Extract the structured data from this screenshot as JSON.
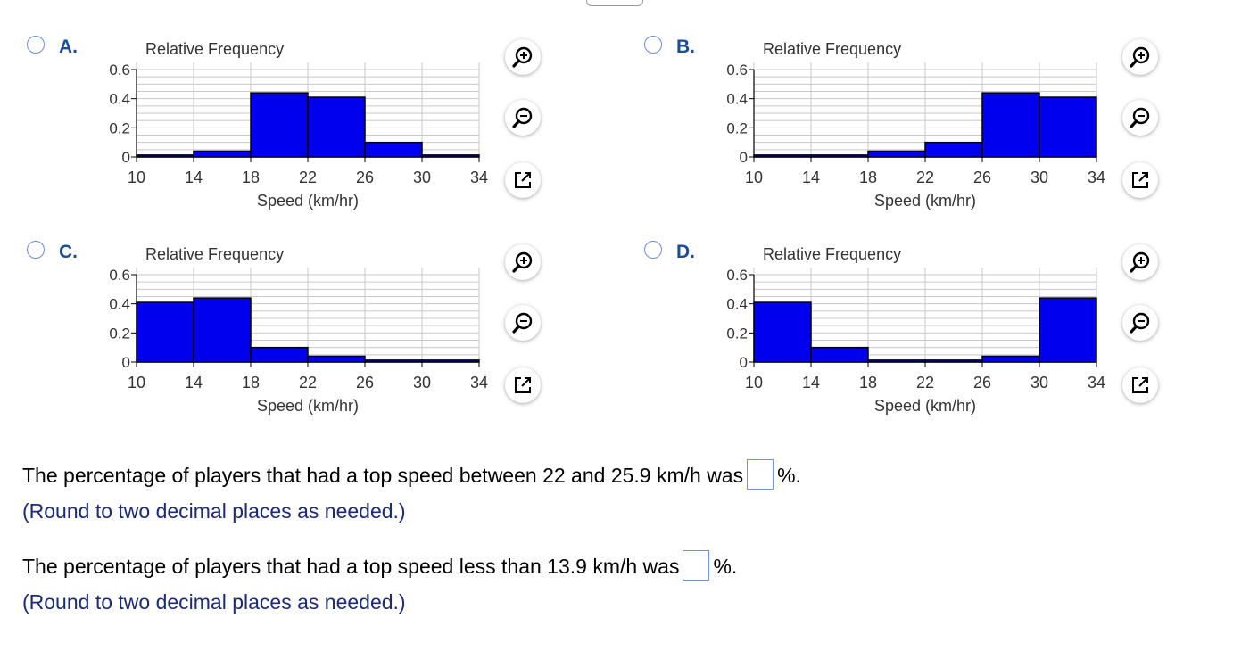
{
  "options": [
    {
      "id": "A",
      "letter": "A.",
      "values": [
        0.013,
        0.04,
        0.44,
        0.41,
        0.1,
        0.013
      ]
    },
    {
      "id": "B",
      "letter": "B.",
      "values": [
        0.013,
        0.013,
        0.04,
        0.1,
        0.44,
        0.41
      ]
    },
    {
      "id": "C",
      "letter": "C.",
      "values": [
        0.41,
        0.44,
        0.1,
        0.04,
        0.013,
        0.013
      ]
    },
    {
      "id": "D",
      "letter": "D.",
      "values": [
        0.41,
        0.1,
        0.013,
        0.013,
        0.04,
        0.44
      ]
    }
  ],
  "chart_common": {
    "ylabel": "Relative Frequency",
    "xlabel": "Speed (km/hr)",
    "x_ticks": [
      "10",
      "14",
      "18",
      "22",
      "26",
      "30",
      "34"
    ],
    "y_ticks": [
      "0",
      "0.2",
      "0.4",
      "0.6"
    ]
  },
  "chart_data": [
    {
      "type": "bar",
      "title": "",
      "categories": [
        "10-14",
        "14-18",
        "18-22",
        "22-26",
        "26-30",
        "30-34"
      ],
      "values": [
        0.013,
        0.04,
        0.44,
        0.41,
        0.1,
        0.013
      ],
      "xlabel": "Speed (km/hr)",
      "ylabel": "Relative Frequency",
      "ylim": [
        0,
        0.6
      ],
      "grid": true
    },
    {
      "type": "bar",
      "title": "",
      "categories": [
        "10-14",
        "14-18",
        "18-22",
        "22-26",
        "26-30",
        "30-34"
      ],
      "values": [
        0.013,
        0.013,
        0.04,
        0.1,
        0.44,
        0.41
      ],
      "xlabel": "Speed (km/hr)",
      "ylabel": "Relative Frequency",
      "ylim": [
        0,
        0.6
      ],
      "grid": true
    },
    {
      "type": "bar",
      "title": "",
      "categories": [
        "10-14",
        "14-18",
        "18-22",
        "22-26",
        "26-30",
        "30-34"
      ],
      "values": [
        0.41,
        0.44,
        0.1,
        0.04,
        0.013,
        0.013
      ],
      "xlabel": "Speed (km/hr)",
      "ylabel": "Relative Frequency",
      "ylim": [
        0,
        0.6
      ],
      "grid": true
    },
    {
      "type": "bar",
      "title": "",
      "categories": [
        "10-14",
        "14-18",
        "18-22",
        "22-26",
        "26-30",
        "30-34"
      ],
      "values": [
        0.41,
        0.1,
        0.013,
        0.013,
        0.04,
        0.44
      ],
      "xlabel": "Speed (km/hr)",
      "ylabel": "Relative Frequency",
      "ylim": [
        0,
        0.6
      ],
      "grid": true
    }
  ],
  "tools": {
    "zoom_in": "zoom-in-icon",
    "zoom_out": "zoom-out-icon",
    "popout": "popout-icon"
  },
  "colors": {
    "bar": "#0000ee",
    "grid": "#c8c8c8",
    "option_letter": "#1b4c9a",
    "hint": "#1b2a7a",
    "answer_border": "#6b95da"
  },
  "questions": [
    {
      "text": "The percentage of players that had a top speed between 22 and 25.9 km/h was",
      "unit": "%.",
      "answer": "",
      "hint": "(Round to two decimal places as needed.)"
    },
    {
      "text": "The percentage of players that had a top speed less than 13.9 km/h was",
      "unit": "%.",
      "answer": "",
      "hint": "(Round to two decimal places as needed.)"
    }
  ]
}
